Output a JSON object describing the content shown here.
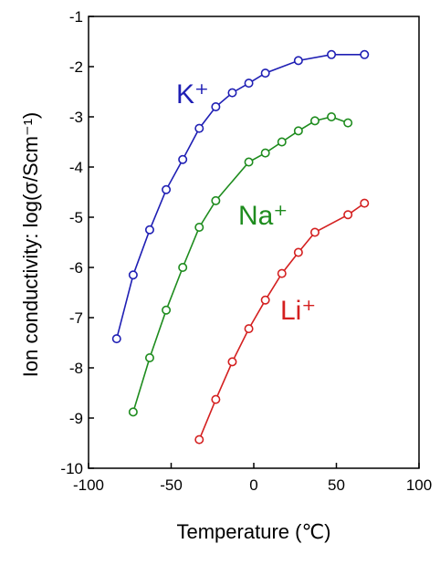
{
  "chart_data": {
    "type": "line",
    "title": "",
    "xlabel": "Temperature (℃)",
    "ylabel": "Ion conductivity: log(σ/Scm⁻¹)",
    "xlim": [
      -100,
      100
    ],
    "ylim": [
      -10,
      -1
    ],
    "x_ticks": [
      "-100",
      "-50",
      "0",
      "50",
      "100"
    ],
    "y_ticks": [
      "-1",
      "-2",
      "-3",
      "-4",
      "-5",
      "-6",
      "-7",
      "-8",
      "-9",
      "-10"
    ],
    "grid": false,
    "legend": "none",
    "series": [
      {
        "name": "K⁺",
        "color": "#1f1fb4",
        "x": [
          -83,
          -73,
          -63,
          -53,
          -43,
          -33,
          -23,
          -13,
          -3,
          7,
          27,
          47,
          67
        ],
        "y": [
          -7.42,
          -6.15,
          -5.25,
          -4.45,
          -3.85,
          -3.23,
          -2.8,
          -2.52,
          -2.33,
          -2.13,
          -1.88,
          -1.76,
          -1.76
        ]
      },
      {
        "name": "Na⁺",
        "color": "#1e8c1e",
        "x": [
          -73,
          -63,
          -53,
          -43,
          -33,
          -23,
          -3,
          7,
          17,
          27,
          37,
          47,
          57
        ],
        "y": [
          -8.88,
          -7.8,
          -6.85,
          -6.0,
          -5.2,
          -4.67,
          -3.9,
          -3.72,
          -3.5,
          -3.28,
          -3.08,
          -3.0,
          -3.12
        ]
      },
      {
        "name": "Li⁺",
        "color": "#d42020",
        "x": [
          -33,
          -23,
          -13,
          -3,
          7,
          17,
          27,
          37,
          57,
          67
        ],
        "y": [
          -9.43,
          -8.63,
          -7.88,
          -7.22,
          -6.65,
          -6.12,
          -5.7,
          -5.3,
          -4.95,
          -4.72
        ]
      }
    ]
  }
}
